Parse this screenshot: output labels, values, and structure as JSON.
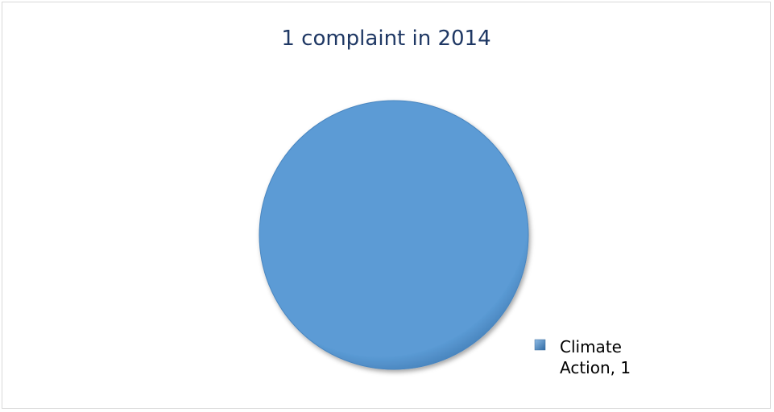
{
  "chart_data": {
    "type": "pie",
    "title": "1 complaint in 2014",
    "slices": [
      {
        "label": "Climate Action",
        "value": 1
      }
    ],
    "data_labels": [
      "Climate Action, 1"
    ],
    "legend": "bottom-right",
    "colors": {
      "slice": "#5b9bd5",
      "title": "#1f3864"
    }
  }
}
